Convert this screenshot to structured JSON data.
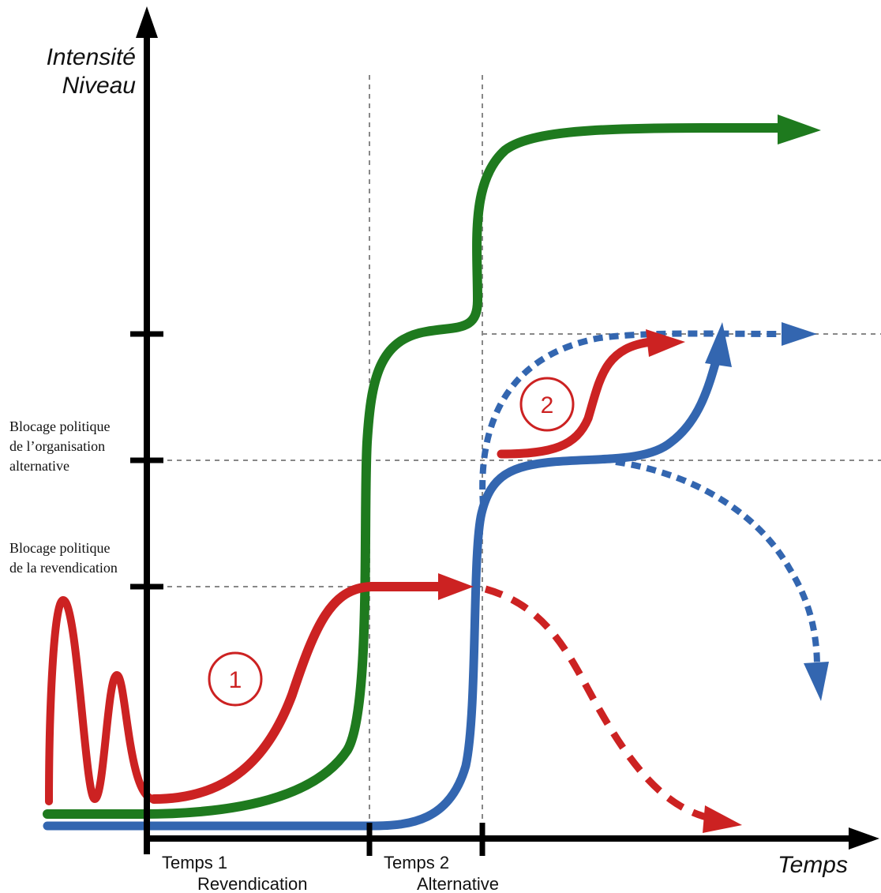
{
  "axes": {
    "y_title_line1": "Intensité",
    "y_title_line2": "Niveau",
    "x_title": "Temps"
  },
  "phases": [
    {
      "line1": "Temps 1",
      "line2": "Revendication"
    },
    {
      "line1": "Temps 2",
      "line2": "Alternative"
    }
  ],
  "thresholds": [
    {
      "line1": "Blocage politique",
      "line2": "de la revendication"
    },
    {
      "line1": "Blocage politique",
      "line2": "de l’organisation",
      "line3": "alternative"
    }
  ],
  "markers": [
    {
      "number": "1"
    },
    {
      "number": "2"
    }
  ],
  "colors": {
    "red": "#cc2222",
    "green": "#1e7a1e",
    "blue": "#3366b0",
    "axis": "#000000",
    "guide": "#888888"
  }
}
